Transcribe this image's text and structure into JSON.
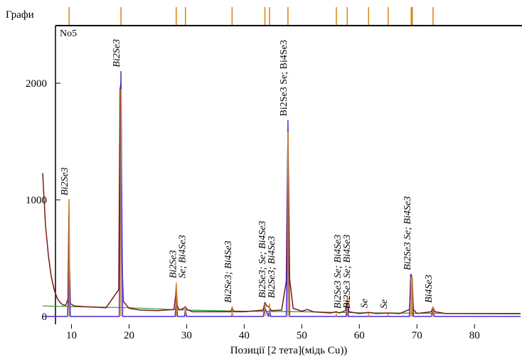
{
  "header_label": "Графи",
  "chart_data": {
    "type": "line",
    "sample_label": "No5",
    "xlabel": "Позиції [2 тета](мідь Cu))",
    "ylabel": "",
    "xlim": [
      5,
      88
    ],
    "ylim": [
      -20,
      2500
    ],
    "x_ticks": [
      10,
      20,
      30,
      40,
      50,
      60,
      70,
      80
    ],
    "y_ticks": [
      0,
      1000,
      2000
    ],
    "grid": false,
    "reference_markers": [
      9.6,
      18.6,
      28.2,
      29.8,
      37.9,
      43.6,
      44.4,
      47.6,
      56.0,
      57.9,
      61.6,
      65.0,
      69.0,
      69.2,
      72.8
    ],
    "series": [
      {
        "color": "#7a1a12",
        "x": [
          5.0,
          5.5,
          6.0,
          6.5,
          7.0,
          7.5,
          8.0,
          8.5,
          9.0,
          9.4,
          9.55,
          9.6,
          9.65,
          9.8,
          10.5,
          12,
          14,
          16,
          18.2,
          18.45,
          18.6,
          18.75,
          19.0,
          20,
          22,
          25,
          27.8,
          28.1,
          28.2,
          28.35,
          28.7,
          29.5,
          29.8,
          30.1,
          31,
          35,
          37.7,
          37.9,
          38.1,
          40,
          43.3,
          43.6,
          43.9,
          44.2,
          44.4,
          44.7,
          46.5,
          47.3,
          47.6,
          47.9,
          48.5,
          50,
          51,
          52,
          55,
          56.0,
          56.5,
          57.6,
          57.9,
          58.2,
          60,
          61.6,
          63,
          65.0,
          67,
          68.7,
          69.0,
          69.1,
          69.4,
          70,
          72.5,
          72.8,
          73.1,
          75,
          80,
          85,
          88
        ],
        "y": [
          1230,
          780,
          520,
          340,
          230,
          160,
          120,
          100,
          95,
          150,
          850,
          1000,
          420,
          110,
          90,
          85,
          80,
          75,
          230,
          1950,
          2000,
          560,
          130,
          70,
          55,
          50,
          60,
          180,
          270,
          90,
          55,
          70,
          85,
          60,
          40,
          40,
          40,
          80,
          40,
          40,
          55,
          120,
          90,
          85,
          75,
          50,
          55,
          300,
          1600,
          320,
          70,
          45,
          60,
          40,
          30,
          40,
          30,
          50,
          150,
          40,
          25,
          35,
          25,
          30,
          25,
          60,
          340,
          320,
          60,
          25,
          40,
          80,
          40,
          25,
          25,
          25,
          25
        ]
      },
      {
        "color": "#4a2bd6",
        "x": [
          5.0,
          9.3,
          9.55,
          9.6,
          9.65,
          9.8,
          12,
          18.3,
          18.5,
          18.6,
          18.7,
          18.9,
          20,
          28.0,
          28.2,
          28.4,
          29.6,
          29.8,
          30.0,
          35,
          37.8,
          37.9,
          38.0,
          43.3,
          43.6,
          43.8,
          44.2,
          44.4,
          44.6,
          47.3,
          47.5,
          47.6,
          47.7,
          47.9,
          50,
          57.7,
          57.9,
          58.1,
          60,
          68.7,
          68.9,
          69.0,
          69.2,
          69.4,
          72.5,
          72.8,
          73.0,
          75,
          88
        ],
        "y": [
          0,
          0,
          240,
          360,
          240,
          0,
          0,
          0,
          1260,
          2100,
          1250,
          0,
          0,
          0,
          140,
          0,
          0,
          60,
          0,
          0,
          0,
          30,
          0,
          0,
          80,
          50,
          0,
          60,
          0,
          0,
          560,
          1680,
          580,
          0,
          0,
          0,
          100,
          0,
          0,
          0,
          360,
          360,
          320,
          0,
          0,
          60,
          0,
          0,
          0
        ]
      },
      {
        "color": "#d98a1c",
        "x": [
          9.6,
          18.6,
          28.2,
          29.8,
          37.9,
          43.6,
          44.4,
          47.6,
          56.0,
          57.9,
          61.6,
          65.0,
          69.0,
          69.2,
          72.8
        ],
        "y": [
          1000,
          1950,
          290,
          90,
          80,
          110,
          110,
          1580,
          25,
          180,
          25,
          25,
          340,
          340,
          80
        ]
      },
      {
        "color": "#2e9a3a",
        "x": [
          5,
          10,
          20,
          30,
          40,
          50,
          60,
          70,
          80,
          88
        ],
        "y": [
          90,
          85,
          75,
          55,
          45,
          40,
          32,
          28,
          24,
          22
        ]
      }
    ],
    "annotations": [
      {
        "x": 9.6,
        "lines": [
          "Bi2Se3"
        ],
        "italic": true
      },
      {
        "x": 18.6,
        "lines": [
          "Bi2Se3"
        ],
        "italic": true
      },
      {
        "x": 28.4,
        "lines": [
          "Bi2Se3",
          "Se; Bi4Se3"
        ],
        "italic": true
      },
      {
        "x": 38.0,
        "lines": [
          "Bi2Se3; Bi4Se3"
        ],
        "italic": true
      },
      {
        "x": 43.9,
        "lines": [
          "Bi2Se3; Se; Bi4Se3",
          "Bi2Se3; Bi4Se3"
        ],
        "italic": true
      },
      {
        "x": 47.6,
        "lines": [
          "Bi2Se3 Se; Bi4Se3"
        ],
        "italic": false
      },
      {
        "x": 57.0,
        "lines": [
          "Bi2Se3 Se; Bi4Se3",
          "Bi2Se3 Se; Bi4Se3"
        ],
        "italic": true
      },
      {
        "x": 61.6,
        "lines": [
          "Se"
        ],
        "italic": true
      },
      {
        "x": 65.0,
        "lines": [
          "Se"
        ],
        "italic": true
      },
      {
        "x": 69.1,
        "lines": [
          "Bi2Se3 Se; Bi4Se3"
        ],
        "italic": true
      },
      {
        "x": 72.8,
        "lines": [
          "Bi4Se3"
        ],
        "italic": true
      }
    ]
  }
}
